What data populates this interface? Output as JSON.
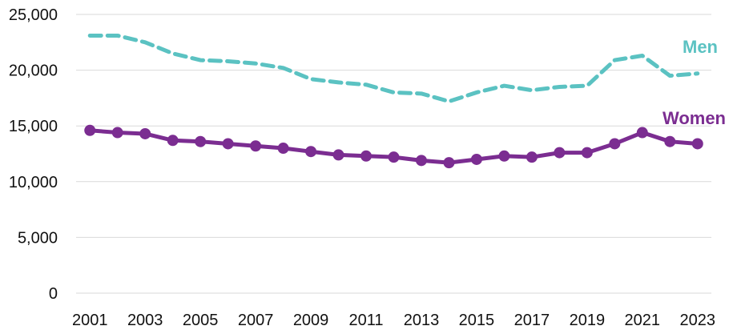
{
  "chart_data": {
    "type": "line",
    "title": "",
    "xlabel": "",
    "ylabel": "",
    "x": [
      2001,
      2002,
      2003,
      2004,
      2005,
      2006,
      2007,
      2008,
      2009,
      2010,
      2011,
      2012,
      2013,
      2014,
      2015,
      2016,
      2017,
      2018,
      2019,
      2020,
      2021,
      2022,
      2023
    ],
    "x_tick_labels": [
      "2001",
      "2003",
      "2005",
      "2007",
      "2009",
      "2011",
      "2013",
      "2015",
      "2017",
      "2019",
      "2021",
      "2023"
    ],
    "y_tick_labels": [
      "0",
      "5,000",
      "10,000",
      "15,000",
      "20,000",
      "25,000"
    ],
    "ylim": [
      0,
      25000
    ],
    "grid": "horizontal",
    "series": [
      {
        "name": "Men",
        "color": "#5bc2c2",
        "line_style": "dashed",
        "markers": false,
        "values": [
          23100,
          23100,
          22500,
          21500,
          20900,
          20800,
          20600,
          20200,
          19200,
          18900,
          18700,
          18000,
          17900,
          17200,
          18000,
          18600,
          18200,
          18500,
          18600,
          20900,
          21300,
          19500,
          19700
        ]
      },
      {
        "name": "Women",
        "color": "#7b2d91",
        "line_style": "solid",
        "markers": true,
        "values": [
          14600,
          14400,
          14300,
          13700,
          13600,
          13400,
          13200,
          13000,
          12700,
          12400,
          12300,
          12200,
          11900,
          11700,
          12000,
          12300,
          12200,
          12600,
          12600,
          13400,
          14400,
          13600,
          13400
        ]
      }
    ]
  }
}
